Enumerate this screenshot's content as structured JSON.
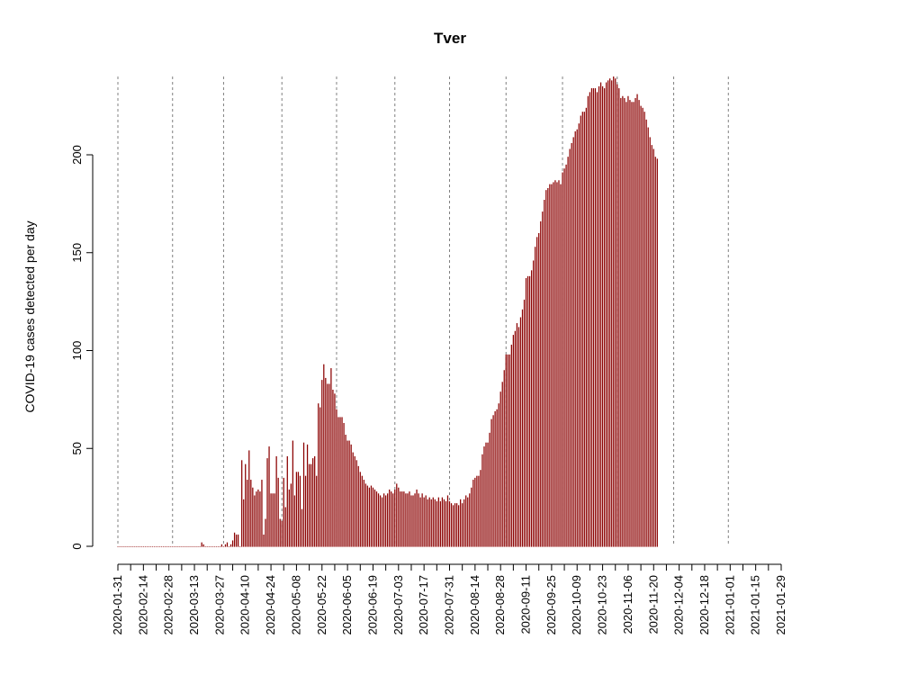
{
  "chart_data": {
    "type": "bar",
    "title": "Tver",
    "xlabel": "",
    "ylabel": "COVID-19 cases detected per day",
    "bar_color": "#8B0000",
    "gridline_color": "#808080",
    "x_start": "2020-01-31",
    "x_end": "2021-01-29",
    "ylim": [
      0,
      240
    ],
    "yticks": [
      0,
      50,
      100,
      150,
      200
    ],
    "xtick_labels": [
      "2020-01-31",
      "2020-02-14",
      "2020-02-28",
      "2020-03-13",
      "2020-03-27",
      "2020-04-10",
      "2020-04-24",
      "2020-05-08",
      "2020-05-22",
      "2020-06-05",
      "2020-06-19",
      "2020-07-03",
      "2020-07-17",
      "2020-07-31",
      "2020-08-14",
      "2020-08-28",
      "2020-09-11",
      "2020-09-25",
      "2020-10-09",
      "2020-10-23",
      "2020-11-06",
      "2020-11-20",
      "2020-12-04",
      "2020-12-18",
      "2021-01-01",
      "2021-01-15",
      "2021-01-29"
    ],
    "vlines": [
      "2020-01-31",
      "2020-03-01",
      "2020-03-29",
      "2020-04-30",
      "2020-05-30",
      "2020-07-01",
      "2020-07-31",
      "2020-08-31",
      "2020-10-01",
      "2020-10-31",
      "2020-12-01",
      "2020-12-31"
    ],
    "values": [
      0,
      0,
      0,
      0,
      0,
      0,
      0,
      0,
      0,
      0,
      0,
      0,
      0,
      0,
      0,
      0,
      0,
      0,
      0,
      0,
      0,
      0,
      0,
      0,
      0,
      0,
      0,
      0,
      0,
      0,
      0,
      0,
      0,
      0,
      0,
      0,
      0,
      0,
      0,
      0,
      0,
      0,
      0,
      0,
      0,
      0,
      2,
      1,
      0,
      0,
      0,
      0,
      0,
      0,
      0,
      0,
      0,
      1,
      0,
      1,
      2,
      0,
      1,
      3,
      7,
      6,
      6,
      0,
      44,
      24,
      42,
      34,
      49,
      34,
      30,
      26,
      28,
      29,
      28,
      34,
      6,
      14,
      45,
      51,
      27,
      27,
      27,
      46,
      35,
      14,
      13,
      35,
      20,
      46,
      29,
      32,
      54,
      26,
      38,
      38,
      36,
      19,
      53,
      36,
      52,
      42,
      42,
      45,
      46,
      36,
      73,
      71,
      85,
      93,
      86,
      83,
      83,
      91,
      80,
      78,
      70,
      66,
      66,
      66,
      63,
      57,
      54,
      54,
      52,
      48,
      46,
      44,
      41,
      38,
      36,
      34,
      32,
      31,
      30,
      31,
      30,
      29,
      28,
      27,
      26,
      25,
      27,
      26,
      27,
      29,
      28,
      27,
      29,
      32,
      30,
      28,
      28,
      28,
      27,
      27,
      28,
      26,
      26,
      27,
      29,
      27,
      25,
      27,
      25,
      26,
      24,
      25,
      24,
      25,
      24,
      23,
      25,
      23,
      25,
      24,
      23,
      26,
      23,
      22,
      21,
      22,
      22,
      21,
      24,
      22,
      24,
      26,
      25,
      27,
      30,
      34,
      35,
      36,
      36,
      39,
      47,
      51,
      53,
      53,
      58,
      65,
      67,
      69,
      70,
      73,
      79,
      84,
      90,
      98,
      98,
      98,
      103,
      108,
      110,
      114,
      112,
      117,
      121,
      126,
      137,
      138,
      138,
      141,
      146,
      153,
      158,
      160,
      166,
      171,
      177,
      182,
      183,
      185,
      185,
      186,
      187,
      186,
      187,
      185,
      191,
      193,
      195,
      199,
      203,
      206,
      209,
      212,
      213,
      216,
      220,
      222,
      222,
      224,
      230,
      232,
      234,
      234,
      234,
      232,
      235,
      237,
      235,
      234,
      237,
      238,
      239,
      238,
      240,
      239,
      236,
      234,
      229,
      230,
      229,
      227,
      230,
      228,
      227,
      227,
      229,
      231,
      228,
      225,
      224,
      222,
      218,
      214,
      209,
      205,
      203,
      199,
      198
    ]
  }
}
